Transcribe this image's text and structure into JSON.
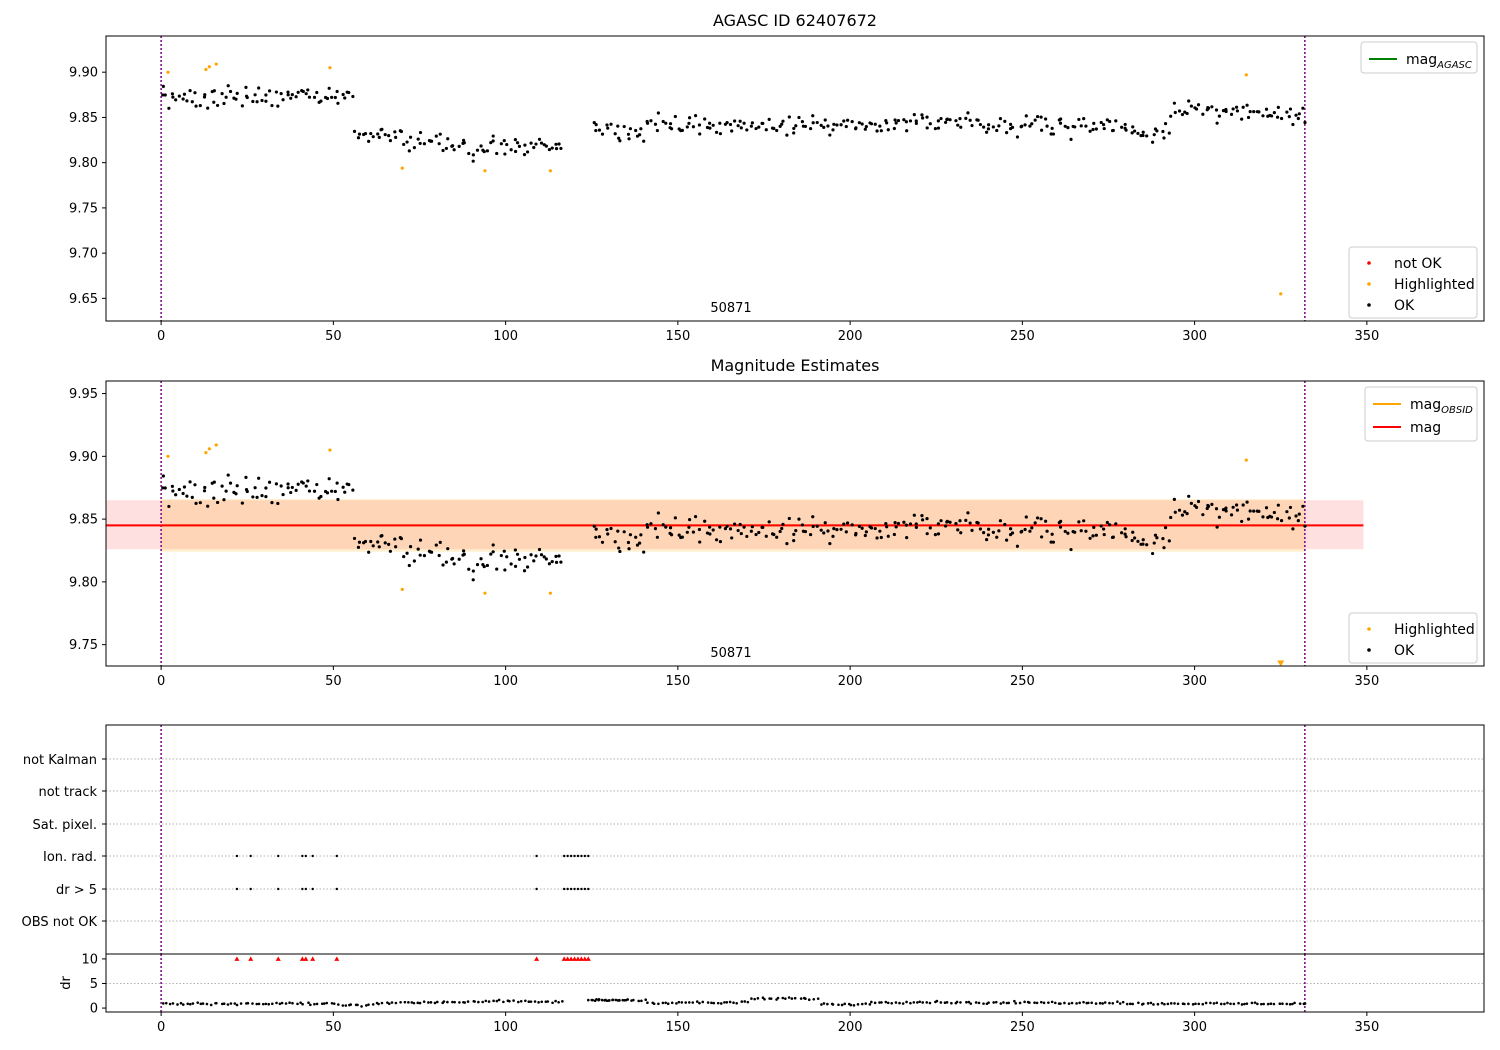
{
  "window": {
    "title": "AGASC ID 62407672"
  },
  "chart_data": [
    {
      "type": "scatter",
      "title": "AGASC ID 62407672",
      "annotation": "50871",
      "xlim": [
        -16,
        384
      ],
      "ylim": [
        9.625,
        9.94
      ],
      "xticks": [
        0,
        50,
        100,
        150,
        200,
        250,
        300,
        350
      ],
      "yticks": [
        9.65,
        9.7,
        9.75,
        9.8,
        9.85,
        9.9
      ],
      "ytick_labels": [
        "9.65",
        "9.70",
        "9.75",
        "9.80",
        "9.85",
        "9.90"
      ],
      "vlines": [
        0,
        332
      ],
      "legend_top": [
        {
          "label": "mag",
          "subscript": "AGASC",
          "color": "#008000"
        }
      ],
      "legend_bottom": [
        {
          "label": "not OK",
          "color": "#ff0000"
        },
        {
          "label": "Highlighted",
          "color": "#ffa500"
        },
        {
          "label": "OK",
          "color": "#000000"
        }
      ],
      "series": [
        {
          "name": "Highlighted",
          "color": "#ffa500",
          "x": [
            2,
            13,
            14,
            16,
            49,
            70,
            94,
            113,
            315,
            325
          ],
          "y": [
            9.9,
            9.903,
            9.906,
            9.909,
            9.905,
            9.794,
            9.791,
            9.791,
            9.897,
            9.655
          ]
        }
      ]
    },
    {
      "type": "scatter",
      "title": "Magnitude Estimates",
      "annotation": "50871",
      "xlim": [
        -16,
        384
      ],
      "ylim": [
        9.733,
        9.96
      ],
      "xticks": [
        0,
        50,
        100,
        150,
        200,
        250,
        300,
        350
      ],
      "yticks": [
        9.75,
        9.8,
        9.85,
        9.9,
        9.95
      ],
      "ytick_labels": [
        "9.75",
        "9.80",
        "9.85",
        "9.90",
        "9.95"
      ],
      "vlines": [
        0,
        332
      ],
      "mag": 9.845,
      "mag_band": [
        9.826,
        9.865
      ],
      "mag_obsid": 9.845,
      "mag_obsid_band": [
        9.824,
        9.866
      ],
      "legend_top": [
        {
          "label": "mag",
          "subscript": "OBSID",
          "color": "#ffa500"
        },
        {
          "label": "mag",
          "subscript": "",
          "color": "#ff0000"
        }
      ],
      "legend_bottom": [
        {
          "label": "Highlighted",
          "color": "#ffa500"
        },
        {
          "label": "OK",
          "color": "#000000"
        }
      ],
      "series": [
        {
          "name": "Highlighted",
          "color": "#ffa500",
          "x": [
            2,
            13,
            14,
            16,
            49,
            70,
            94,
            113,
            315
          ],
          "y": [
            9.9,
            9.903,
            9.906,
            9.909,
            9.905,
            9.794,
            9.791,
            9.791,
            9.897
          ]
        }
      ],
      "offscale_marker": {
        "x": 325,
        "y": 9.735
      }
    },
    {
      "type": "scatter",
      "title": "",
      "xlim": [
        -16,
        384
      ],
      "categories": [
        "OBS not OK",
        "dr > 5",
        "Ion. rad.",
        "Sat. pixel.",
        "not track",
        "not Kalman"
      ],
      "vlines": [
        0,
        332
      ],
      "flag_x": [
        22,
        26,
        34,
        41,
        42,
        44,
        51,
        109,
        117,
        118,
        119,
        120,
        121,
        122,
        123,
        124
      ],
      "flags": {
        "dr > 5": true,
        "Ion. rad.": true
      }
    },
    {
      "type": "scatter",
      "ylabel": "dr",
      "xlim": [
        -16,
        384
      ],
      "ylim": [
        -0.8,
        11
      ],
      "yticks": [
        0,
        5,
        10
      ],
      "ytick_labels": [
        "0",
        "5",
        "10"
      ],
      "xticks": [
        0,
        50,
        100,
        150,
        200,
        250,
        300,
        350
      ],
      "vlines": [
        0,
        332
      ],
      "clipped_x": [
        22,
        26,
        34,
        41,
        42,
        44,
        51,
        109,
        117,
        118,
        119,
        120,
        121,
        122,
        123,
        124
      ],
      "clipped_value": 10
    }
  ]
}
